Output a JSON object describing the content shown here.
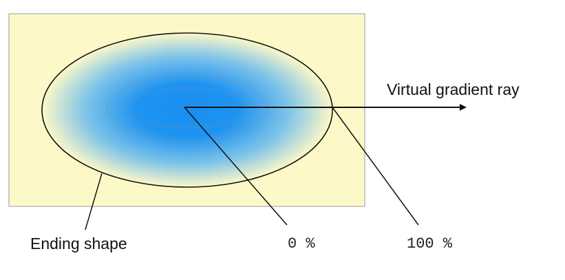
{
  "labels": {
    "virtual_gradient_ray": "Virtual gradient ray",
    "ending_shape": "Ending shape",
    "zero_percent": "0 %",
    "hundred_percent": "100 %"
  },
  "colors": {
    "box_background": "#fdf8c8",
    "box_border": "#aaaaaa",
    "gradient_center": "#1a8ef0",
    "gradient_edge": "#fdf8c8",
    "outline": "#111111",
    "dashed_guides": "#8a8a8a"
  }
}
